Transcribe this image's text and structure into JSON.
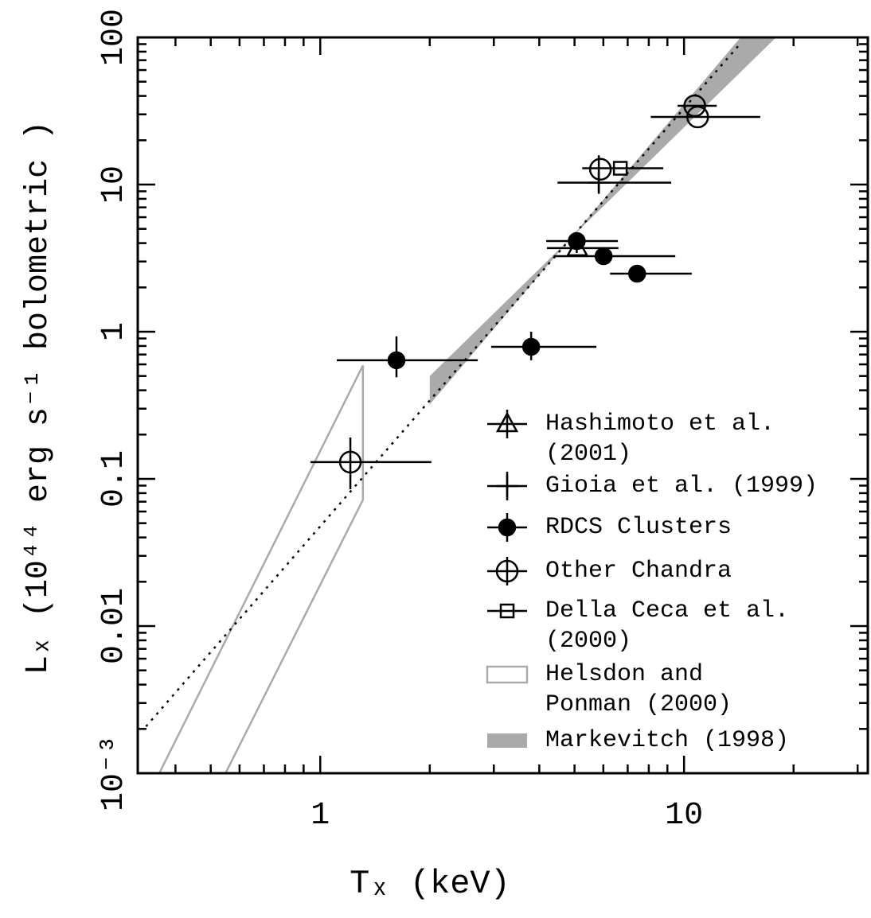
{
  "chart_data": {
    "type": "scatter",
    "xlabel": "Tₓ (keV)",
    "ylabel": "Lₓ (10⁴⁴ erg s⁻¹ bolometric )",
    "xscale": "log",
    "yscale": "log",
    "xlim": [
      0.315,
      32
    ],
    "ylim": [
      0.001,
      100
    ],
    "xticks": [
      1,
      10
    ],
    "xminor": [
      0.4,
      0.5,
      0.6,
      0.7,
      0.8,
      0.9,
      2,
      3,
      4,
      5,
      6,
      7,
      8,
      9,
      20,
      30
    ],
    "yticks": [
      {
        "value": 0.001,
        "label": "10⁻³"
      },
      0.01,
      0.1,
      1,
      10,
      100
    ],
    "yminor": [
      0.002,
      0.003,
      0.004,
      0.005,
      0.006,
      0.007,
      0.008,
      0.009,
      0.02,
      0.03,
      0.04,
      0.05,
      0.06,
      0.07,
      0.08,
      0.09,
      0.2,
      0.3,
      0.4,
      0.5,
      0.6,
      0.7,
      0.8,
      0.9,
      2,
      3,
      4,
      5,
      6,
      7,
      8,
      9,
      20,
      30,
      40,
      50,
      60,
      70,
      80,
      90
    ],
    "series": [
      {
        "name": "Hashimoto et al. (2001)",
        "marker": "triangle",
        "color": "#000000",
        "x": [
          5.09
        ],
        "y": [
          3.7
        ],
        "xerr": [
          [
            4.2,
            6.6
          ]
        ],
        "yerr": [
          null
        ]
      },
      {
        "name": "Gioia et al. (1999)",
        "marker": "plus",
        "color": "#000000",
        "x": [
          5.83
        ],
        "y": [
          10.3
        ],
        "xerr": [
          [
            4.49,
            9.22
          ]
        ],
        "yerr": [
          [
            8.8,
            15.8
          ]
        ]
      },
      {
        "name": "RDCS Clusters",
        "marker": "filled-circle",
        "color": "#000000",
        "x": [
          1.62,
          3.8,
          5.07,
          6.01,
          7.43
        ],
        "y": [
          0.64,
          0.79,
          4.13,
          3.26,
          2.48
        ],
        "xerr": [
          [
            1.11,
            2.71
          ],
          [
            2.95,
            5.74
          ],
          [
            4.18,
            6.58
          ],
          [
            4.38,
            9.46
          ],
          [
            6.26,
            10.5
          ]
        ],
        "yerr": [
          [
            0.49,
            0.93
          ],
          [
            0.64,
            1.0
          ],
          [
            3.43,
            4.74
          ],
          null,
          null
        ]
      },
      {
        "name": "Other Chandra",
        "marker": "open-circle",
        "color": "#000000",
        "x": [
          10.7,
          10.9,
          5.89,
          1.21
        ],
        "y": [
          34.3,
          28.8,
          12.7,
          0.13
        ],
        "xerr": [
          [
            9.6,
            12.3
          ],
          [
            8.1,
            16.2
          ],
          null,
          [
            0.94,
            2.02
          ]
        ],
        "yerr": [
          null,
          null,
          null,
          [
            0.085,
            0.191
          ]
        ]
      },
      {
        "name": "Della Ceca et al. (2000)",
        "marker": "square",
        "color": "#000000",
        "x": [
          6.68
        ],
        "y": [
          12.9
        ],
        "xerr": [
          [
            5.25,
            8.77
          ]
        ],
        "yerr": [
          null
        ]
      }
    ],
    "lines": [
      {
        "style": "dotted",
        "color": "#000000",
        "x": [
          0.332,
          14.4
        ],
        "y": [
          0.00208,
          92.9
        ]
      }
    ],
    "regions": [
      {
        "name": "Helsdon and Ponman (2000)",
        "style": "outline",
        "color": "#aaaaaa",
        "x": [
          0.361,
          1.31,
          1.31,
          0.549
        ],
        "y": [
          0.001,
          0.59,
          0.072,
          0.001
        ]
      },
      {
        "name": "Markevitch (1998)",
        "style": "filled",
        "color": "#aaaaaa",
        "x": [
          2,
          2,
          14.3,
          17.9
        ],
        "y": [
          0.5,
          0.32,
          100,
          100
        ]
      }
    ]
  }
}
